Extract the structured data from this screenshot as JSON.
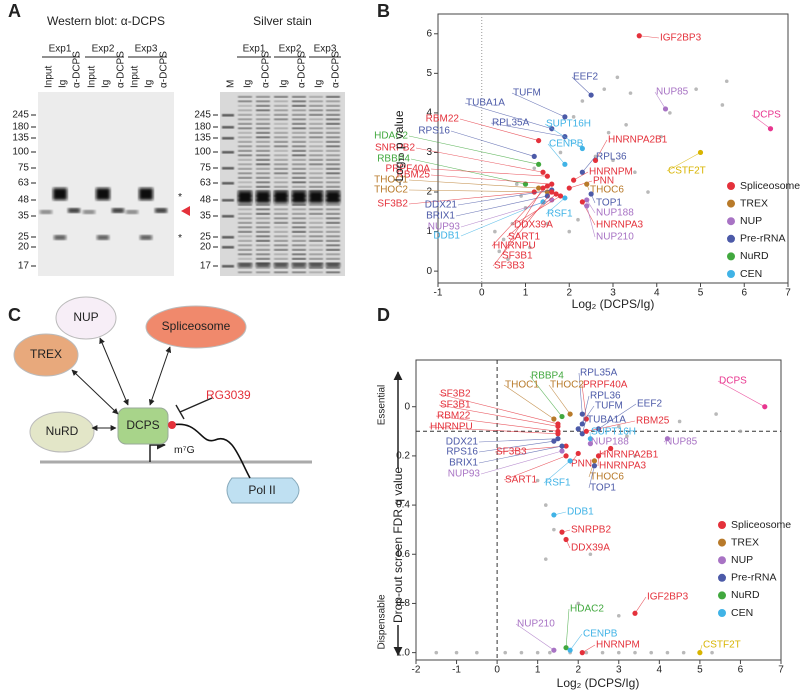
{
  "panels": [
    "A",
    "B",
    "C",
    "D"
  ],
  "western_blot": {
    "title": "Western blot: α-DCPS",
    "experiments": [
      "Exp1",
      "Exp2",
      "Exp3"
    ],
    "lanes": [
      "Input",
      "Ig",
      "α-DCPS",
      "Input",
      "Ig",
      "α-DCPS",
      "Input",
      "Ig",
      "α-DCPS"
    ],
    "markers": [
      245,
      180,
      135,
      100,
      75,
      63,
      48,
      35,
      25,
      20,
      17
    ],
    "annotations": [
      "*",
      "*"
    ]
  },
  "silver_stain": {
    "title": "Silver stain",
    "experiments": [
      "Exp1",
      "Exp2",
      "Exp3"
    ],
    "lanes": [
      "M",
      "Ig",
      "α-DCPS",
      "Ig",
      "α-DCPS",
      "Ig",
      "α-DCPS"
    ],
    "markers": [
      245,
      180,
      135,
      100,
      75,
      63,
      48,
      35,
      25,
      20,
      17
    ]
  },
  "diagram": {
    "nodes": [
      "NUP",
      "Spliceosome",
      "TREX",
      "NuRD",
      "DCPS",
      "Pol II"
    ],
    "inhibitor": "RG3039",
    "cap": "m⁷G"
  },
  "chart_data": [
    {
      "type": "scatter",
      "x_label": "Log₂ (DCPS/Ig)",
      "y_label": "-Log₁₀ p value",
      "xlim": [
        -1,
        7
      ],
      "xticks": [
        -1,
        0,
        1,
        2,
        3,
        4,
        5,
        6,
        7
      ],
      "ylim": [
        -0.3,
        6.5
      ],
      "yticks": [
        0,
        1,
        2,
        3,
        4,
        5,
        6
      ],
      "reference_lines": {
        "x": 0
      },
      "background_points": {
        "color": "#a8a8a8",
        "x": [
          0.3,
          0.5,
          0.7,
          1.0,
          0.8,
          1.2,
          2.1,
          2.3,
          2.8,
          3.1,
          3.4,
          2.9,
          3.3,
          4.1,
          4.3,
          5.5,
          5.6,
          4.9,
          3.0,
          3.5,
          2.2,
          1.1,
          0.6,
          1.5,
          3.8,
          1.8,
          2.6,
          0.9,
          2.0,
          0.4
        ],
        "y": [
          1.0,
          0.8,
          1.2,
          1.6,
          2.2,
          2.6,
          3.9,
          4.3,
          4.6,
          4.9,
          4.5,
          3.5,
          3.7,
          3.4,
          4.0,
          4.2,
          4.8,
          4.6,
          2.8,
          2.5,
          1.3,
          0.6,
          0.3,
          1.2,
          2.0,
          3.0,
          2.9,
          1.9,
          1.0,
          0.5
        ]
      },
      "points": [
        {
          "label": "IGF2BP3",
          "color": "#e4313b",
          "x": 3.6,
          "y": 5.95
        },
        {
          "label": "EEF2",
          "color": "#4c5aa8",
          "x": 2.5,
          "y": 4.45
        },
        {
          "label": "TUFM",
          "color": "#4c5aa8",
          "x": 1.9,
          "y": 3.9
        },
        {
          "label": "TUBA1A",
          "color": "#4c5aa8",
          "x": 1.6,
          "y": 3.6
        },
        {
          "label": "RBM22",
          "color": "#e4313b",
          "x": 1.3,
          "y": 3.3
        },
        {
          "label": "RPL35A",
          "color": "#4c5aa8",
          "x": 1.9,
          "y": 3.4
        },
        {
          "label": "SUPT16H",
          "color": "#40b3e6",
          "x": 2.3,
          "y": 3.1
        },
        {
          "label": "HDAC2",
          "color": "#41a83e",
          "x": 1.3,
          "y": 2.7
        },
        {
          "label": "RPS16",
          "color": "#4c5aa8",
          "x": 1.2,
          "y": 2.9
        },
        {
          "label": "HNRNPA2B1",
          "color": "#e4313b",
          "x": 2.6,
          "y": 2.8
        },
        {
          "label": "CENPB",
          "color": "#40b3e6",
          "x": 1.9,
          "y": 2.7
        },
        {
          "label": "SNRPB2",
          "color": "#e4313b",
          "x": 1.4,
          "y": 2.5
        },
        {
          "label": "RPL36",
          "color": "#4c5aa8",
          "x": 2.3,
          "y": 2.5
        },
        {
          "label": "RBBP4",
          "color": "#41a83e",
          "x": 1.0,
          "y": 2.2
        },
        {
          "label": "PRPF40A",
          "color": "#e4313b",
          "x": 1.5,
          "y": 2.4
        },
        {
          "label": "HNRNPM",
          "color": "#e4313b",
          "x": 2.1,
          "y": 2.3
        },
        {
          "label": "RBM25",
          "color": "#e4313b",
          "x": 1.6,
          "y": 2.2
        },
        {
          "label": "THOC1",
          "color": "#b87a2a",
          "x": 1.3,
          "y": 2.1
        },
        {
          "label": "PNN",
          "color": "#e4313b",
          "x": 2.0,
          "y": 2.1
        },
        {
          "label": "THOC2",
          "color": "#b87a2a",
          "x": 1.5,
          "y": 2.0
        },
        {
          "label": "THOC6",
          "color": "#b87a2a",
          "x": 2.4,
          "y": 2.2
        },
        {
          "label": "SF3B2",
          "color": "#e4313b",
          "x": 1.2,
          "y": 2.0
        },
        {
          "label": "DDX21",
          "color": "#4c5aa8",
          "x": 1.6,
          "y": 2.05
        },
        {
          "label": "TOP1",
          "color": "#4c5aa8",
          "x": 2.5,
          "y": 1.95
        },
        {
          "label": "BRIX1",
          "color": "#4c5aa8",
          "x": 1.5,
          "y": 1.9
        },
        {
          "label": "RSF1",
          "color": "#40b3e6",
          "x": 1.9,
          "y": 1.85
        },
        {
          "label": "NUP188",
          "color": "#a873c4",
          "x": 2.4,
          "y": 1.8
        },
        {
          "label": "NUP93",
          "color": "#a873c4",
          "x": 1.6,
          "y": 1.8
        },
        {
          "label": "DDX39A",
          "color": "#e4313b",
          "x": 1.8,
          "y": 1.9
        },
        {
          "label": "HNRNPA3",
          "color": "#e4313b",
          "x": 2.3,
          "y": 1.75
        },
        {
          "label": "DDB1",
          "color": "#40b3e6",
          "x": 1.4,
          "y": 1.75
        },
        {
          "label": "SART1",
          "color": "#e4313b",
          "x": 1.7,
          "y": 1.95
        },
        {
          "label": "NUP210",
          "color": "#a873c4",
          "x": 2.4,
          "y": 1.65
        },
        {
          "label": "HNRNPU",
          "color": "#e4313b",
          "x": 1.5,
          "y": 2.15
        },
        {
          "label": "SF3B1",
          "color": "#e4313b",
          "x": 1.4,
          "y": 2.1
        },
        {
          "label": "SF3B3",
          "color": "#e4313b",
          "x": 1.6,
          "y": 2.0
        },
        {
          "label": "NUP85",
          "color": "#a873c4",
          "x": 4.2,
          "y": 4.1
        },
        {
          "label": "DCPS",
          "color": "#e8368f",
          "x": 6.6,
          "y": 3.6
        },
        {
          "label": "CSTF2T",
          "color": "#d8b400",
          "x": 5.0,
          "y": 3.0
        }
      ],
      "legend": [
        {
          "name": "Spliceosome",
          "color": "#e4313b"
        },
        {
          "name": "TREX",
          "color": "#b87a2a"
        },
        {
          "name": "NUP",
          "color": "#a873c4"
        },
        {
          "name": "Pre-rRNA",
          "color": "#4c5aa8"
        },
        {
          "name": "NuRD",
          "color": "#41a83e"
        },
        {
          "name": "CEN",
          "color": "#40b3e6"
        }
      ]
    },
    {
      "type": "scatter",
      "x_label": "Log₂ (DCPS/Ig)",
      "y_label": "Drop-out screen FDR  q value",
      "y_inverted": true,
      "annotations": [
        "Essential",
        "Dispensable"
      ],
      "xlim": [
        -2,
        7
      ],
      "xticks": [
        -2,
        -1,
        0,
        1,
        2,
        3,
        4,
        5,
        6,
        7
      ],
      "ylim": [
        -0.19,
        1.03
      ],
      "yticks": [
        0,
        0.2,
        0.4,
        0.6,
        0.8,
        {
          "value": 1,
          "label": "1.0"
        }
      ],
      "reference_lines": {
        "x": 0,
        "y": 0.1
      },
      "background_points": {
        "color": "#a8a8a8",
        "x": [
          -1.5,
          -1.0,
          -0.5,
          0.2,
          0.6,
          1.0,
          1.3,
          1.8,
          2.2,
          2.6,
          3.0,
          3.4,
          3.8,
          4.2,
          4.6,
          5.3,
          3.0,
          3.2,
          4.5,
          5.4,
          6.0,
          3.4,
          1.0,
          1.2,
          2.3,
          1.2,
          2.0,
          3.0,
          1.4
        ],
        "y": [
          1.0,
          1.0,
          1.0,
          1.0,
          1.0,
          1.0,
          1.0,
          1.0,
          1.0,
          1.0,
          1.0,
          1.0,
          1.0,
          1.0,
          1.0,
          1.0,
          0.08,
          0.12,
          0.06,
          0.03,
          0.1,
          0.2,
          0.3,
          0.4,
          0.6,
          0.62,
          0.8,
          0.85,
          0.5
        ]
      },
      "points": [
        {
          "label": "DCPS",
          "color": "#e8368f",
          "x": 6.6,
          "y": 0.0
        },
        {
          "label": "RPL35A",
          "color": "#4c5aa8",
          "x": 2.1,
          "y": 0.03
        },
        {
          "label": "PRPF40A",
          "color": "#e4313b",
          "x": 2.2,
          "y": 0.05
        },
        {
          "label": "RBBP4",
          "color": "#41a83e",
          "x": 1.6,
          "y": 0.04
        },
        {
          "label": "THOC1",
          "color": "#b87a2a",
          "x": 1.4,
          "y": 0.05
        },
        {
          "label": "THOC2",
          "color": "#b87a2a",
          "x": 1.8,
          "y": 0.03
        },
        {
          "label": "RPL36",
          "color": "#4c5aa8",
          "x": 2.1,
          "y": 0.07
        },
        {
          "label": "SF3B2",
          "color": "#e4313b",
          "x": 1.5,
          "y": 0.07
        },
        {
          "label": "SF3B1",
          "color": "#e4313b",
          "x": 1.5,
          "y": 0.08
        },
        {
          "label": "TUFM",
          "color": "#4c5aa8",
          "x": 2.0,
          "y": 0.09
        },
        {
          "label": "EEF2",
          "color": "#4c5aa8",
          "x": 2.5,
          "y": 0.09
        },
        {
          "label": "RBM22",
          "color": "#e4313b",
          "x": 1.5,
          "y": 0.1
        },
        {
          "label": "HNRNPU",
          "color": "#e4313b",
          "x": 1.5,
          "y": 0.11
        },
        {
          "label": "TUBA1A",
          "color": "#4c5aa8",
          "x": 2.1,
          "y": 0.11
        },
        {
          "label": "RBM25",
          "color": "#e4313b",
          "x": 2.2,
          "y": 0.1
        },
        {
          "label": "SUPT16H",
          "color": "#40b3e6",
          "x": 2.3,
          "y": 0.13
        },
        {
          "label": "DDX21",
          "color": "#4c5aa8",
          "x": 1.5,
          "y": 0.13
        },
        {
          "label": "NUP188",
          "color": "#a873c4",
          "x": 2.3,
          "y": 0.15
        },
        {
          "label": "NUP85",
          "color": "#a873c4",
          "x": 4.2,
          "y": 0.13
        },
        {
          "label": "RPS16",
          "color": "#4c5aa8",
          "x": 1.4,
          "y": 0.14
        },
        {
          "label": "SF3B3",
          "color": "#e4313b",
          "x": 1.7,
          "y": 0.16
        },
        {
          "label": "HNRNPA2B1",
          "color": "#e4313b",
          "x": 2.8,
          "y": 0.17
        },
        {
          "label": "BRIX1",
          "color": "#4c5aa8",
          "x": 1.6,
          "y": 0.16
        },
        {
          "label": "PNN",
          "color": "#e4313b",
          "x": 2.0,
          "y": 0.19
        },
        {
          "label": "HNRNPA3",
          "color": "#e4313b",
          "x": 2.5,
          "y": 0.2
        },
        {
          "label": "NUP93",
          "color": "#a873c4",
          "x": 1.6,
          "y": 0.18
        },
        {
          "label": "SART1",
          "color": "#e4313b",
          "x": 1.7,
          "y": 0.2
        },
        {
          "label": "THOC6",
          "color": "#b87a2a",
          "x": 2.4,
          "y": 0.22
        },
        {
          "label": "RSF1",
          "color": "#40b3e6",
          "x": 1.8,
          "y": 0.22
        },
        {
          "label": "TOP1",
          "color": "#4c5aa8",
          "x": 2.4,
          "y": 0.24
        },
        {
          "label": "DDB1",
          "color": "#40b3e6",
          "x": 1.4,
          "y": 0.44
        },
        {
          "label": "SNRPB2",
          "color": "#e4313b",
          "x": 1.6,
          "y": 0.51
        },
        {
          "label": "DDX39A",
          "color": "#e4313b",
          "x": 1.7,
          "y": 0.54
        },
        {
          "label": "IGF2BP3",
          "color": "#e4313b",
          "x": 3.4,
          "y": 0.84
        },
        {
          "label": "HDAC2",
          "color": "#41a83e",
          "x": 1.7,
          "y": 0.98
        },
        {
          "label": "NUP210",
          "color": "#a873c4",
          "x": 1.4,
          "y": 0.99
        },
        {
          "label": "CENPB",
          "color": "#40b3e6",
          "x": 1.8,
          "y": 0.99
        },
        {
          "label": "HNRNPM",
          "color": "#e4313b",
          "x": 2.1,
          "y": 1.0
        },
        {
          "label": "CSTF2T",
          "color": "#d8b400",
          "x": 5.0,
          "y": 1.0
        }
      ],
      "legend": [
        {
          "name": "Spliceosome",
          "color": "#e4313b"
        },
        {
          "name": "TREX",
          "color": "#b87a2a"
        },
        {
          "name": "NUP",
          "color": "#a873c4"
        },
        {
          "name": "Pre-rRNA",
          "color": "#4c5aa8"
        },
        {
          "name": "NuRD",
          "color": "#41a83e"
        },
        {
          "name": "CEN",
          "color": "#40b3e6"
        }
      ]
    }
  ]
}
